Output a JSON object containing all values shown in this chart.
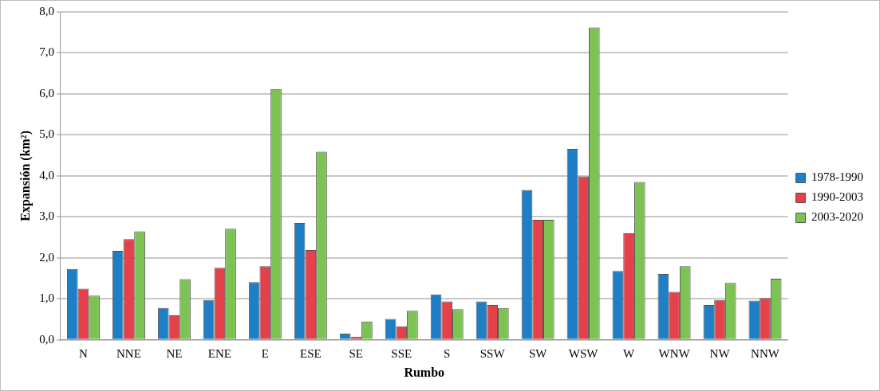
{
  "chart_data": {
    "type": "bar",
    "xlabel": "Rumbo",
    "ylabel": "Expansión (km²)",
    "categories": [
      "N",
      "NNE",
      "NE",
      "ENE",
      "E",
      "ESE",
      "SE",
      "SSE",
      "S",
      "SSW",
      "SW",
      "WSW",
      "W",
      "WNW",
      "NW",
      "NNW"
    ],
    "series": [
      {
        "name": "1978-1990",
        "color": "#1f7fc6",
        "values": [
          1.73,
          2.17,
          0.78,
          0.97,
          1.41,
          2.85,
          0.15,
          0.51,
          1.11,
          0.94,
          3.66,
          4.66,
          1.68,
          1.61,
          0.85,
          0.96
        ]
      },
      {
        "name": "1990-2003",
        "color": "#e5414b",
        "values": [
          1.25,
          2.46,
          0.6,
          1.76,
          1.8,
          2.19,
          0.08,
          0.33,
          0.94,
          0.85,
          2.93,
          3.99,
          2.6,
          1.17,
          0.97,
          1.02
        ]
      },
      {
        "name": "2003-2020",
        "color": "#7dc353",
        "values": [
          1.08,
          2.65,
          1.48,
          2.71,
          6.12,
          4.59,
          0.45,
          0.71,
          0.75,
          0.78,
          2.93,
          7.62,
          3.85,
          1.8,
          1.39,
          1.49
        ]
      }
    ],
    "ylim": [
      0,
      8
    ],
    "yticks": [
      {
        "value": 0,
        "label": "0,0"
      },
      {
        "value": 1,
        "label": "1,0"
      },
      {
        "value": 2,
        "label": "2,0"
      },
      {
        "value": 3,
        "label": "3,0"
      },
      {
        "value": 4,
        "label": "4,0"
      },
      {
        "value": 5,
        "label": "5,0"
      },
      {
        "value": 6,
        "label": "6,0"
      },
      {
        "value": 7,
        "label": "7,0"
      },
      {
        "value": 8,
        "label": "8,0"
      }
    ],
    "grid": "y",
    "legend": "right"
  }
}
